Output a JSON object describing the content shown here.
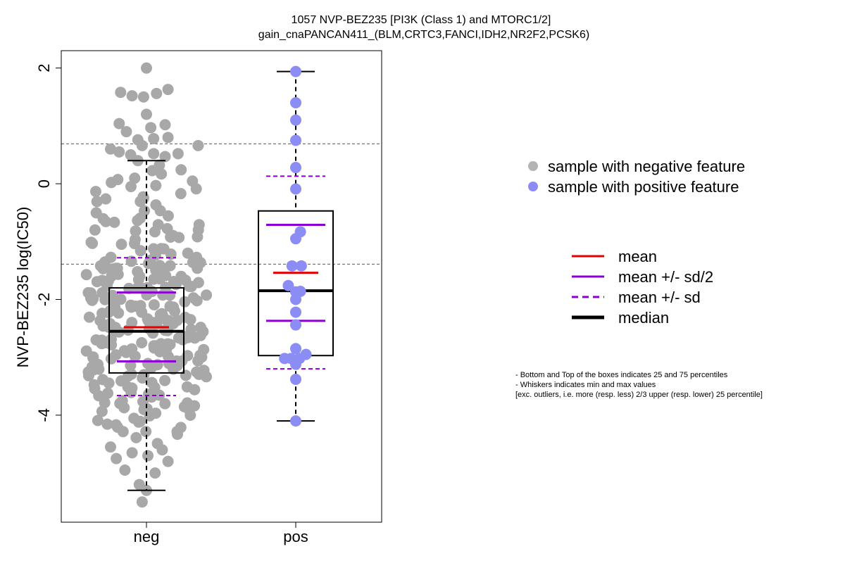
{
  "chart_data": {
    "type": "boxplot",
    "title": "1057 NVP-BEZ235 [PI3K (Class 1) and MTORC1/2]",
    "subtitle": "gain_cnaPANCAN411_(BLM,CRTC3,FANCI,IDH2,NR2F2,PCSK6)",
    "ylabel": "NVP-BEZ235 log(IC50)",
    "xlabel": "",
    "ylim": [
      -5.85,
      2.3
    ],
    "yticks": [
      2,
      0,
      -2,
      -4
    ],
    "ytick_labels": [
      "2",
      "0",
      "-2",
      "-4"
    ],
    "categories": [
      "neg",
      "pos"
    ],
    "hlines": [
      0.69,
      -1.39
    ],
    "groups": [
      {
        "name": "neg",
        "color": "#a8a8a8",
        "whisker_low": -5.3,
        "q1": -3.27,
        "median": -2.55,
        "q3": -1.8,
        "whisker_high": 0.4,
        "mean": -2.48,
        "mean_minus_half_sd": -3.07,
        "mean_plus_half_sd": -1.88,
        "mean_minus_sd": -3.66,
        "mean_plus_sd": -1.28,
        "highlighted_points": [
          [
            0,
            2.0
          ],
          [
            -0.36,
            1.58
          ],
          [
            -0.2,
            1.52
          ],
          [
            -0.04,
            1.5
          ],
          [
            0.14,
            1.56
          ],
          [
            0.3,
            1.63
          ],
          [
            0,
            1.2
          ],
          [
            -0.38,
            1.04
          ],
          [
            -0.28,
            0.9
          ],
          [
            0.06,
            0.97
          ],
          [
            0.26,
            1.02
          ],
          [
            -0.12,
            0.76
          ],
          [
            0.1,
            0.78
          ],
          [
            0.3,
            0.8
          ],
          [
            -0.5,
            0.6
          ],
          [
            -0.38,
            0.55
          ],
          [
            -0.22,
            0.5
          ],
          [
            -0.06,
            0.66
          ],
          [
            0.1,
            0.52
          ],
          [
            0.26,
            0.47
          ],
          [
            0.44,
            0.52
          ],
          [
            0.72,
            0.66
          ],
          [
            -0.12,
            0.4
          ],
          [
            0.18,
            0.32
          ],
          [
            0,
            -5.3
          ],
          [
            -0.06,
            -5.5
          ],
          [
            -0.1,
            -5.2
          ],
          [
            0.12,
            -5.0
          ],
          [
            -0.3,
            -4.95
          ],
          [
            0.3,
            -4.8
          ],
          [
            -0.42,
            -4.75
          ],
          [
            -0.2,
            -4.65
          ],
          [
            0.02,
            -4.7
          ],
          [
            0.22,
            -4.6
          ],
          [
            -0.5,
            -4.55
          ]
        ]
      },
      {
        "name": "pos",
        "color": "#8c8cf5",
        "whisker_low": -4.1,
        "q1": -2.97,
        "median": -1.85,
        "q3": -0.47,
        "whisker_high": 1.94,
        "mean": -1.54,
        "mean_minus_half_sd": -2.37,
        "mean_plus_half_sd": -0.71,
        "mean_minus_sd": -3.2,
        "mean_plus_sd": 0.13,
        "points": [
          [
            0,
            1.94
          ],
          [
            0,
            1.4
          ],
          [
            0,
            1.1
          ],
          [
            0,
            0.75
          ],
          [
            0,
            0.28
          ],
          [
            0,
            -0.09
          ],
          [
            0.1,
            -0.83
          ],
          [
            0,
            -0.95
          ],
          [
            -0.08,
            -1.42
          ],
          [
            0.12,
            -1.42
          ],
          [
            -0.16,
            -1.76
          ],
          [
            0,
            -1.87
          ],
          [
            0.1,
            -1.86
          ],
          [
            0,
            -2.0
          ],
          [
            0,
            -2.22
          ],
          [
            0,
            -2.44
          ],
          [
            0,
            -2.85
          ],
          [
            0.22,
            -2.95
          ],
          [
            -0.24,
            -3.02
          ],
          [
            -0.1,
            -3.02
          ],
          [
            0.08,
            -3.02
          ],
          [
            0,
            -3.12
          ],
          [
            0,
            -3.38
          ],
          [
            0,
            -4.1
          ]
        ]
      }
    ],
    "legend_samples": [
      {
        "label": "sample with negative feature",
        "color": "#b4b4b4"
      },
      {
        "label": "sample with positive feature",
        "color": "#8c8cf5"
      }
    ],
    "legend_lines": [
      {
        "label": "mean",
        "color": "#e60000",
        "style": "solid"
      },
      {
        "label": "mean +/- sd/2",
        "color": "#8a00d4",
        "style": "solid"
      },
      {
        "label": "mean +/- sd",
        "color": "#8a00d4",
        "style": "dashed"
      },
      {
        "label": "median",
        "color": "#000000",
        "style": "solid-thick"
      }
    ],
    "notes": [
      "- Bottom and Top of the boxes indicates 25 and 75 percentiles",
      "- Whiskers indicates min and max values",
      "[exc. outliers, i.e. more (resp. less) 2/3 upper (resp. lower) 25 percentile]"
    ]
  }
}
